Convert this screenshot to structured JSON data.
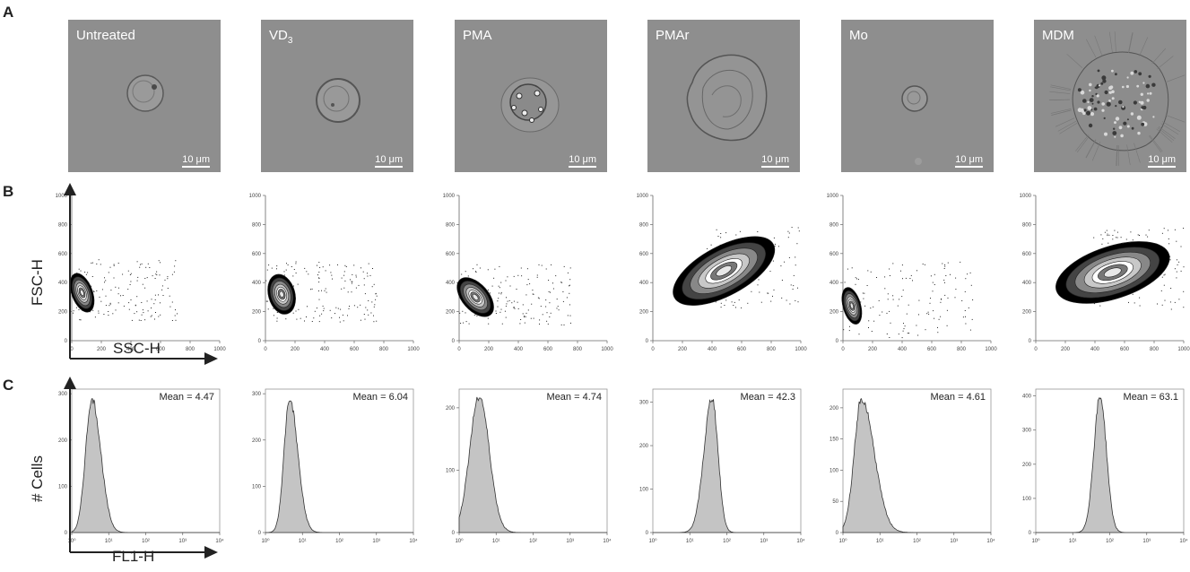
{
  "panels": {
    "a": "A",
    "b": "B",
    "c": "C"
  },
  "scale_bar_label": "10 μm",
  "conditions": [
    {
      "label": "Untreated",
      "mean_label": "Mean = 4.47"
    },
    {
      "label": "VD",
      "sub": "3",
      "mean_label": "Mean = 6.04"
    },
    {
      "label": "PMA",
      "mean_label": "Mean = 4.74"
    },
    {
      "label": "PMAr",
      "mean_label": "Mean = 42.3"
    },
    {
      "label": "Mo",
      "mean_label": "Mean = 4.61"
    },
    {
      "label": "MDM",
      "mean_label": "Mean = 63.1"
    }
  ],
  "flow_plot": {
    "type": "scatter",
    "xlabel": "SSC-H",
    "ylabel": "FSC-H",
    "xlim": [
      0,
      1000
    ],
    "ylim": [
      0,
      1000
    ],
    "xticks": [
      "0",
      "200",
      "400",
      "600",
      "800",
      "1000"
    ],
    "yticks": [
      "0",
      "200",
      "400",
      "600",
      "800",
      "1000"
    ],
    "populations": [
      {
        "center": [
          70,
          330
        ],
        "spread": [
          70,
          140
        ],
        "tilt": 0.4,
        "tail": 0
      },
      {
        "center": [
          110,
          320
        ],
        "spread": [
          90,
          140
        ],
        "tilt": 0.3,
        "tail": 0
      },
      {
        "center": [
          110,
          300
        ],
        "spread": [
          90,
          160
        ],
        "tilt": 0.8,
        "tail": 0
      },
      {
        "center": [
          480,
          480
        ],
        "spread": [
          380,
          170
        ],
        "tilt": 0.55,
        "tail": 1
      },
      {
        "center": [
          60,
          240
        ],
        "spread": [
          60,
          130
        ],
        "tilt": 0.3,
        "tail": 1
      },
      {
        "center": [
          520,
          470
        ],
        "spread": [
          400,
          180
        ],
        "tilt": 0.35,
        "tail": 1
      }
    ]
  },
  "chart_data": [
    {
      "type": "area",
      "title": "Untreated",
      "xlabel": "FL1-H",
      "ylabel": "# Cells",
      "x_scale": "log",
      "xlim": [
        1,
        10000
      ],
      "xticks": [
        "10⁰",
        "10¹",
        "10²",
        "10³",
        "10⁴"
      ],
      "yticks": [
        "0",
        "100",
        "200",
        "300"
      ],
      "ylim": [
        0,
        310
      ],
      "annotation": "Mean = 4.47",
      "peak_x": 3.5,
      "peak_y": 290,
      "width": [
        0.17,
        0.24
      ]
    },
    {
      "type": "area",
      "title": "VD3",
      "xlabel": "FL1-H",
      "ylabel": "# Cells",
      "x_scale": "log",
      "xlim": [
        1,
        10000
      ],
      "xticks": [
        "10⁰",
        "10¹",
        "10²",
        "10³",
        "10⁴"
      ],
      "yticks": [
        "0",
        "100",
        "200",
        "300"
      ],
      "ylim": [
        0,
        310
      ],
      "annotation": "Mean = 6.04",
      "peak_x": 4.5,
      "peak_y": 290,
      "width": [
        0.15,
        0.22
      ]
    },
    {
      "type": "area",
      "title": "PMA",
      "xlabel": "FL1-H",
      "ylabel": "# Cells",
      "x_scale": "log",
      "xlim": [
        1,
        10000
      ],
      "xticks": [
        "10⁰",
        "10¹",
        "10²",
        "10³",
        "10⁴"
      ],
      "yticks": [
        "0",
        "100",
        "200"
      ],
      "ylim": [
        0,
        230
      ],
      "annotation": "Mean = 4.74",
      "peak_x": 3.5,
      "peak_y": 220,
      "width": [
        0.26,
        0.27
      ]
    },
    {
      "type": "area",
      "title": "PMAr",
      "xlabel": "FL1-H",
      "ylabel": "# Cells",
      "x_scale": "log",
      "xlim": [
        1,
        10000
      ],
      "xticks": [
        "10⁰",
        "10¹",
        "10²",
        "10³",
        "10⁴"
      ],
      "yticks": [
        "0",
        "100",
        "200",
        "300"
      ],
      "ylim": [
        0,
        330
      ],
      "annotation": "Mean = 42.3",
      "peak_x": 40,
      "peak_y": 310,
      "width": [
        0.22,
        0.16
      ]
    },
    {
      "type": "area",
      "title": "Mo",
      "xlabel": "FL1-H",
      "ylabel": "# Cells",
      "x_scale": "log",
      "xlim": [
        1,
        10000
      ],
      "xticks": [
        "10⁰",
        "10¹",
        "10²",
        "10³",
        "10⁴"
      ],
      "yticks": [
        "0",
        "50",
        "100",
        "150",
        "200"
      ],
      "ylim": [
        0,
        230
      ],
      "annotation": "Mean = 4.61",
      "peak_x": 3.2,
      "peak_y": 215,
      "width": [
        0.2,
        0.34
      ]
    },
    {
      "type": "area",
      "title": "MDM",
      "xlabel": "FL1-H",
      "ylabel": "# Cells",
      "x_scale": "log",
      "xlim": [
        1,
        10000
      ],
      "xticks": [
        "10⁰",
        "10¹",
        "10²",
        "10³",
        "10⁴"
      ],
      "yticks": [
        "0",
        "100",
        "200",
        "300",
        "400"
      ],
      "ylim": [
        0,
        420
      ],
      "annotation": "Mean = 63.1",
      "peak_x": 55,
      "peak_y": 400,
      "width": [
        0.17,
        0.17
      ]
    }
  ]
}
